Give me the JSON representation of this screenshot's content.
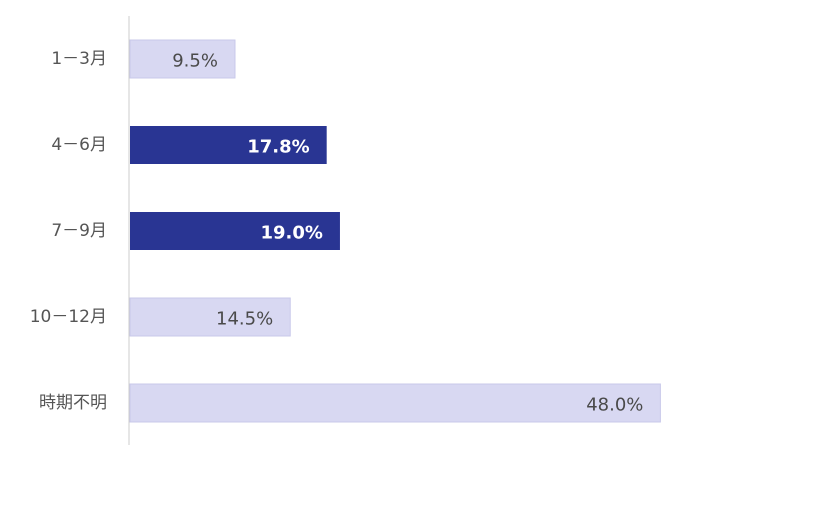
{
  "chart_data": {
    "type": "bar",
    "orientation": "horizontal",
    "categories": [
      "1－3月",
      "4－6月",
      "7－9月",
      "10－12月",
      "時期不明"
    ],
    "values": [
      9.5,
      17.8,
      19.0,
      14.5,
      48.0
    ],
    "value_labels": [
      "9.5%",
      "17.8%",
      "19.0%",
      "14.5%",
      "48.0%"
    ],
    "highlighted": [
      false,
      true,
      true,
      false,
      false
    ],
    "xlim": [
      0,
      50
    ],
    "grid": false,
    "colors": {
      "bar_default": "#d8d8f2",
      "bar_default_stroke": "#c8c8ea",
      "bar_highlight": "#293593",
      "label_default": "#4a4a4a",
      "label_highlight": "#ffffff",
      "axis": "#cccccc"
    }
  }
}
